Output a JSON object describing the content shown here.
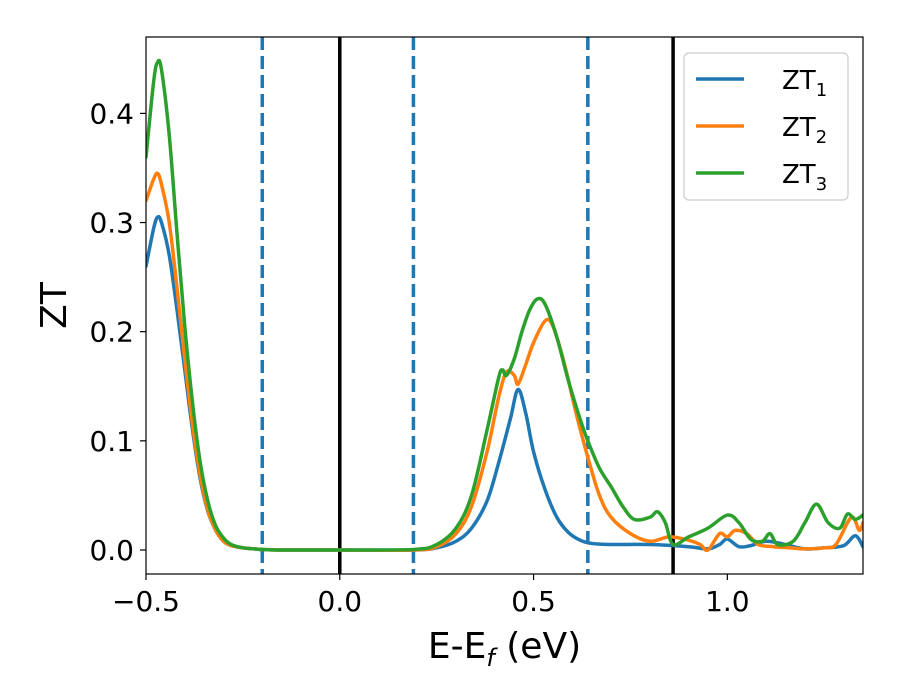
{
  "chart_data": {
    "type": "line",
    "title": "",
    "xlabel": {
      "main": "E-E",
      "sub": "f",
      "suffix": " (eV)"
    },
    "ylabel": "ZT",
    "xlim": [
      -0.5,
      1.35
    ],
    "ylim": [
      -0.022,
      0.47
    ],
    "xticks": [
      {
        "value": -0.5,
        "label": "−0.5"
      },
      {
        "value": 0.0,
        "label": "0.0"
      },
      {
        "value": 0.5,
        "label": "0.5"
      },
      {
        "value": 1.0,
        "label": "1.0"
      }
    ],
    "yticks": [
      {
        "value": 0.0,
        "label": "0.0"
      },
      {
        "value": 0.1,
        "label": "0.1"
      },
      {
        "value": 0.2,
        "label": "0.2"
      },
      {
        "value": 0.3,
        "label": "0.3"
      },
      {
        "value": 0.4,
        "label": "0.4"
      }
    ],
    "grid": false,
    "legend_position": "top-right",
    "vlines": [
      {
        "x": -0.2,
        "style": "dashed",
        "color": "#1f77b4"
      },
      {
        "x": 0.0,
        "style": "solid",
        "color": "#000000"
      },
      {
        "x": 0.19,
        "style": "dashed",
        "color": "#1f77b4"
      },
      {
        "x": 0.64,
        "style": "dashed",
        "color": "#1f77b4"
      },
      {
        "x": 0.86,
        "style": "solid",
        "color": "#000000"
      }
    ],
    "series": [
      {
        "name": "ZT",
        "name_sub": "1",
        "color": "#1f77b4",
        "x": [
          -0.5,
          -0.48,
          -0.47,
          -0.46,
          -0.44,
          -0.42,
          -0.4,
          -0.38,
          -0.36,
          -0.34,
          -0.32,
          -0.3,
          -0.28,
          -0.25,
          -0.22,
          -0.2,
          -0.15,
          0.0,
          0.19,
          0.25,
          0.3,
          0.34,
          0.38,
          0.41,
          0.44,
          0.46,
          0.48,
          0.5,
          0.53,
          0.56,
          0.59,
          0.62,
          0.65,
          0.7,
          0.8,
          0.9,
          0.95,
          0.98,
          1.0,
          1.03,
          1.06,
          1.1,
          1.15,
          1.2,
          1.25,
          1.3,
          1.33,
          1.35
        ],
        "y": [
          0.26,
          0.295,
          0.305,
          0.3,
          0.27,
          0.22,
          0.165,
          0.11,
          0.065,
          0.035,
          0.018,
          0.008,
          0.004,
          0.002,
          0.001,
          0.0005,
          0.0,
          0.0,
          0.0,
          0.002,
          0.008,
          0.02,
          0.045,
          0.08,
          0.12,
          0.147,
          0.125,
          0.09,
          0.055,
          0.03,
          0.016,
          0.009,
          0.006,
          0.005,
          0.005,
          0.003,
          0.001,
          0.005,
          0.01,
          0.003,
          0.004,
          0.008,
          0.005,
          0.001,
          0.002,
          0.004,
          0.013,
          0.003
        ]
      },
      {
        "name": "ZT",
        "name_sub": "2",
        "color": "#ff7f0e",
        "x": [
          -0.5,
          -0.48,
          -0.47,
          -0.46,
          -0.44,
          -0.42,
          -0.4,
          -0.38,
          -0.36,
          -0.34,
          -0.32,
          -0.3,
          -0.28,
          -0.25,
          -0.22,
          -0.2,
          -0.15,
          0.0,
          0.19,
          0.25,
          0.3,
          0.34,
          0.38,
          0.41,
          0.43,
          0.45,
          0.46,
          0.48,
          0.5,
          0.53,
          0.55,
          0.58,
          0.61,
          0.64,
          0.67,
          0.7,
          0.75,
          0.8,
          0.85,
          0.9,
          0.93,
          0.95,
          0.98,
          1.0,
          1.02,
          1.05,
          1.08,
          1.12,
          1.16,
          1.2,
          1.25,
          1.28,
          1.32,
          1.34,
          1.35
        ],
        "y": [
          0.32,
          0.34,
          0.345,
          0.335,
          0.3,
          0.24,
          0.175,
          0.115,
          0.068,
          0.036,
          0.018,
          0.008,
          0.004,
          0.002,
          0.001,
          0.0005,
          0.0,
          0.0,
          0.0,
          0.003,
          0.015,
          0.04,
          0.09,
          0.14,
          0.163,
          0.16,
          0.152,
          0.17,
          0.19,
          0.21,
          0.205,
          0.17,
          0.125,
          0.085,
          0.05,
          0.03,
          0.015,
          0.008,
          0.012,
          0.009,
          0.005,
          0.0,
          0.015,
          0.012,
          0.018,
          0.015,
          0.005,
          0.003,
          0.002,
          0.001,
          0.002,
          0.005,
          0.03,
          0.018,
          0.025
        ]
      },
      {
        "name": "ZT",
        "name_sub": "3",
        "color": "#2ca02c",
        "x": [
          -0.5,
          -0.48,
          -0.47,
          -0.46,
          -0.44,
          -0.42,
          -0.4,
          -0.38,
          -0.36,
          -0.34,
          -0.32,
          -0.3,
          -0.28,
          -0.25,
          -0.22,
          -0.2,
          -0.15,
          0.0,
          0.19,
          0.25,
          0.3,
          0.34,
          0.38,
          0.41,
          0.42,
          0.43,
          0.45,
          0.47,
          0.49,
          0.51,
          0.53,
          0.56,
          0.59,
          0.62,
          0.64,
          0.67,
          0.7,
          0.73,
          0.76,
          0.8,
          0.82,
          0.84,
          0.86,
          0.9,
          0.95,
          1.0,
          1.03,
          1.06,
          1.09,
          1.11,
          1.13,
          1.17,
          1.2,
          1.23,
          1.26,
          1.29,
          1.31,
          1.33,
          1.35
        ],
        "y": [
          0.36,
          0.43,
          0.447,
          0.44,
          0.38,
          0.29,
          0.205,
          0.135,
          0.08,
          0.044,
          0.022,
          0.011,
          0.005,
          0.002,
          0.001,
          0.0005,
          0.0,
          0.0,
          0.0005,
          0.005,
          0.02,
          0.05,
          0.11,
          0.158,
          0.165,
          0.16,
          0.175,
          0.2,
          0.22,
          0.23,
          0.225,
          0.195,
          0.155,
          0.12,
          0.1,
          0.075,
          0.058,
          0.04,
          0.028,
          0.03,
          0.035,
          0.025,
          0.005,
          0.012,
          0.02,
          0.032,
          0.025,
          0.01,
          0.008,
          0.015,
          0.005,
          0.008,
          0.025,
          0.042,
          0.025,
          0.02,
          0.033,
          0.028,
          0.032
        ]
      }
    ]
  }
}
